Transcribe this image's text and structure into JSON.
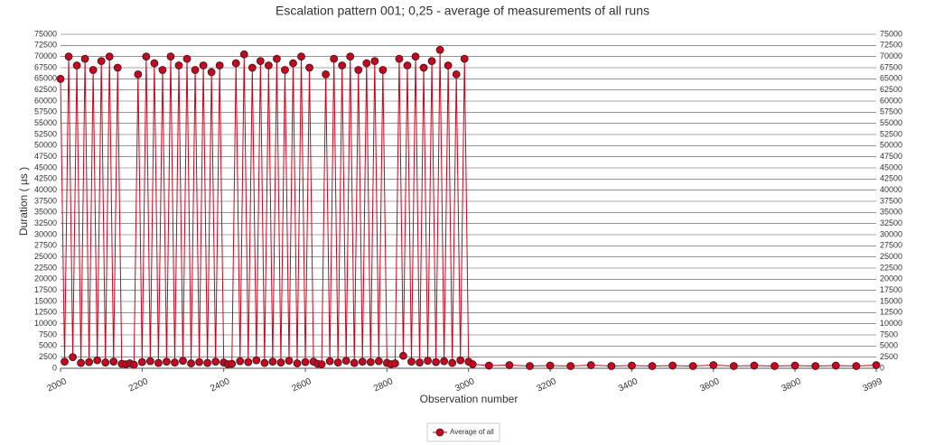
{
  "chart_data": {
    "type": "line",
    "title": "Escalation pattern 001; 0,25 - average of measurements of all runs",
    "x_label": "Observation number",
    "y_label": "Duration ( µs )",
    "x": [
      2000,
      2010,
      2020,
      2030,
      2040,
      2050,
      2060,
      2070,
      2080,
      2090,
      2100,
      2110,
      2120,
      2130,
      2140,
      2150,
      2160,
      2170,
      2180,
      2190,
      2200,
      2210,
      2220,
      2230,
      2240,
      2250,
      2260,
      2270,
      2280,
      2290,
      2300,
      2310,
      2320,
      2330,
      2340,
      2350,
      2360,
      2370,
      2380,
      2390,
      2400,
      2410,
      2420,
      2430,
      2440,
      2450,
      2460,
      2470,
      2480,
      2490,
      2500,
      2510,
      2520,
      2530,
      2540,
      2550,
      2560,
      2570,
      2580,
      2590,
      2600,
      2610,
      2620,
      2630,
      2640,
      2650,
      2660,
      2670,
      2680,
      2690,
      2700,
      2710,
      2720,
      2730,
      2740,
      2750,
      2760,
      2770,
      2780,
      2790,
      2800,
      2810,
      2820,
      2830,
      2840,
      2850,
      2860,
      2870,
      2880,
      2890,
      2900,
      2910,
      2920,
      2930,
      2940,
      2950,
      2960,
      2970,
      2980,
      2990,
      3000,
      3010,
      3050,
      3100,
      3150,
      3200,
      3250,
      3300,
      3350,
      3400,
      3450,
      3500,
      3550,
      3600,
      3650,
      3700,
      3750,
      3800,
      3850,
      3900,
      3950,
      3999
    ],
    "series": [
      {
        "name": "Average of all",
        "color": "#d0021b",
        "values": [
          65000,
          1500,
          70000,
          2500,
          68000,
          1200,
          69500,
          1400,
          67000,
          1800,
          69000,
          1300,
          70000,
          1500,
          67500,
          1000,
          900,
          1100,
          800,
          66000,
          1400,
          70000,
          1600,
          68500,
          1200,
          67000,
          1500,
          70000,
          1300,
          68000,
          1700,
          69500,
          1100,
          67000,
          1400,
          68000,
          1200,
          66500,
          1500,
          68000,
          1300,
          900,
          1000,
          68500,
          1600,
          70500,
          1400,
          67500,
          1800,
          69000,
          1200,
          68000,
          1500,
          69500,
          1300,
          67000,
          1700,
          68500,
          1100,
          70000,
          1400,
          67500,
          1500,
          1000,
          900,
          66000,
          1600,
          69500,
          1300,
          68000,
          1700,
          70000,
          1200,
          67000,
          1500,
          68500,
          1400,
          69000,
          1600,
          67000,
          1200,
          900,
          1100,
          69500,
          2800,
          68000,
          1500,
          70000,
          1300,
          67500,
          1700,
          69000,
          1400,
          71500,
          1600,
          68000,
          1200,
          66000,
          1800,
          69500,
          1500,
          900,
          600,
          700,
          500,
          600,
          500,
          700,
          500,
          600,
          500,
          600,
          500,
          700,
          500,
          600,
          500,
          600,
          500,
          600,
          500,
          700
        ]
      }
    ],
    "xlim": [
      2000,
      3999
    ],
    "xticks": [
      2000,
      2200,
      2400,
      2600,
      2800,
      3000,
      3200,
      3400,
      3600,
      3800,
      3999
    ],
    "ylim": [
      0,
      75000
    ],
    "yticks": [
      0,
      2500,
      5000,
      7500,
      10000,
      12500,
      15000,
      17500,
      20000,
      22500,
      25000,
      27500,
      30000,
      32500,
      35000,
      37500,
      40000,
      42500,
      45000,
      47500,
      50000,
      52500,
      55000,
      57500,
      60000,
      62500,
      65000,
      67500,
      70000,
      72500,
      75000
    ],
    "grid": true,
    "legend": "bottom"
  }
}
